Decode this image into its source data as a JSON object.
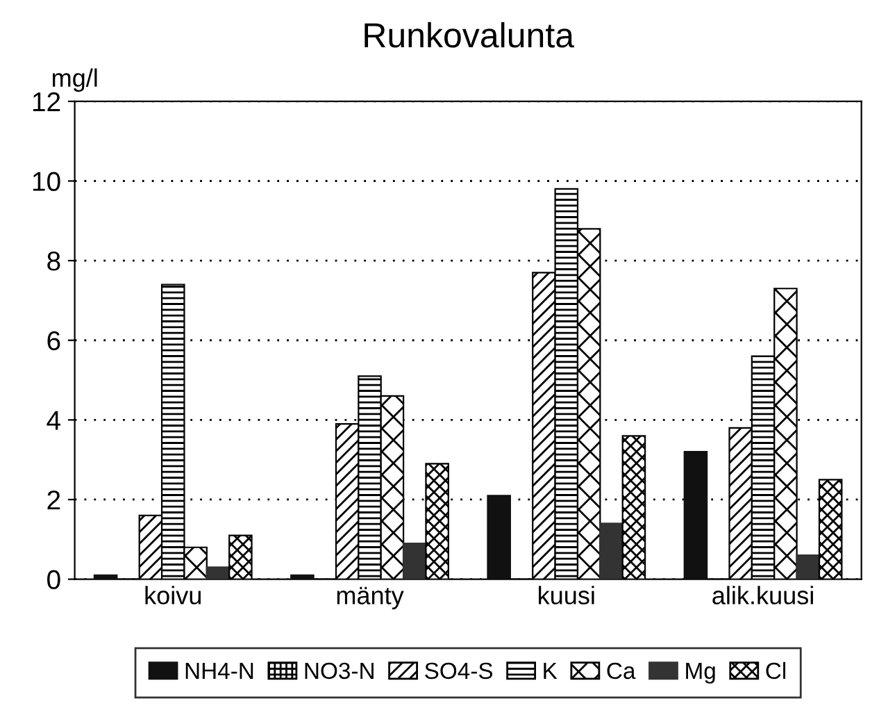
{
  "chart_data": {
    "type": "bar",
    "title": "Runkovalunta",
    "ylabel": "mg/l",
    "categories": [
      "koivu",
      "mänty",
      "kuusi",
      "alik.kuusi"
    ],
    "series": [
      {
        "name": "NH4-N",
        "color": "#111111",
        "values": [
          0.1,
          0.1,
          2.1,
          3.2
        ]
      },
      {
        "name": "NO3-N",
        "color": "#000000",
        "values": [
          0,
          0,
          0,
          0
        ]
      },
      {
        "name": "SO4-S",
        "color": "#000000",
        "values": [
          1.6,
          3.9,
          7.7,
          3.8
        ]
      },
      {
        "name": "K",
        "color": "#000000",
        "values": [
          7.4,
          5.1,
          9.8,
          5.6
        ]
      },
      {
        "name": "Ca",
        "color": "#000000",
        "values": [
          0.8,
          4.6,
          8.8,
          7.3
        ]
      },
      {
        "name": "Mg",
        "color": "#333333",
        "values": [
          0.3,
          0.9,
          1.4,
          0.6
        ]
      },
      {
        "name": "Cl",
        "color": "#000000",
        "values": [
          1.1,
          2.9,
          3.6,
          2.5
        ]
      }
    ],
    "ylim": [
      0,
      12
    ],
    "yticks": [
      0,
      2,
      4,
      6,
      8,
      10,
      12
    ],
    "grid": "y",
    "legend": "bottom"
  }
}
